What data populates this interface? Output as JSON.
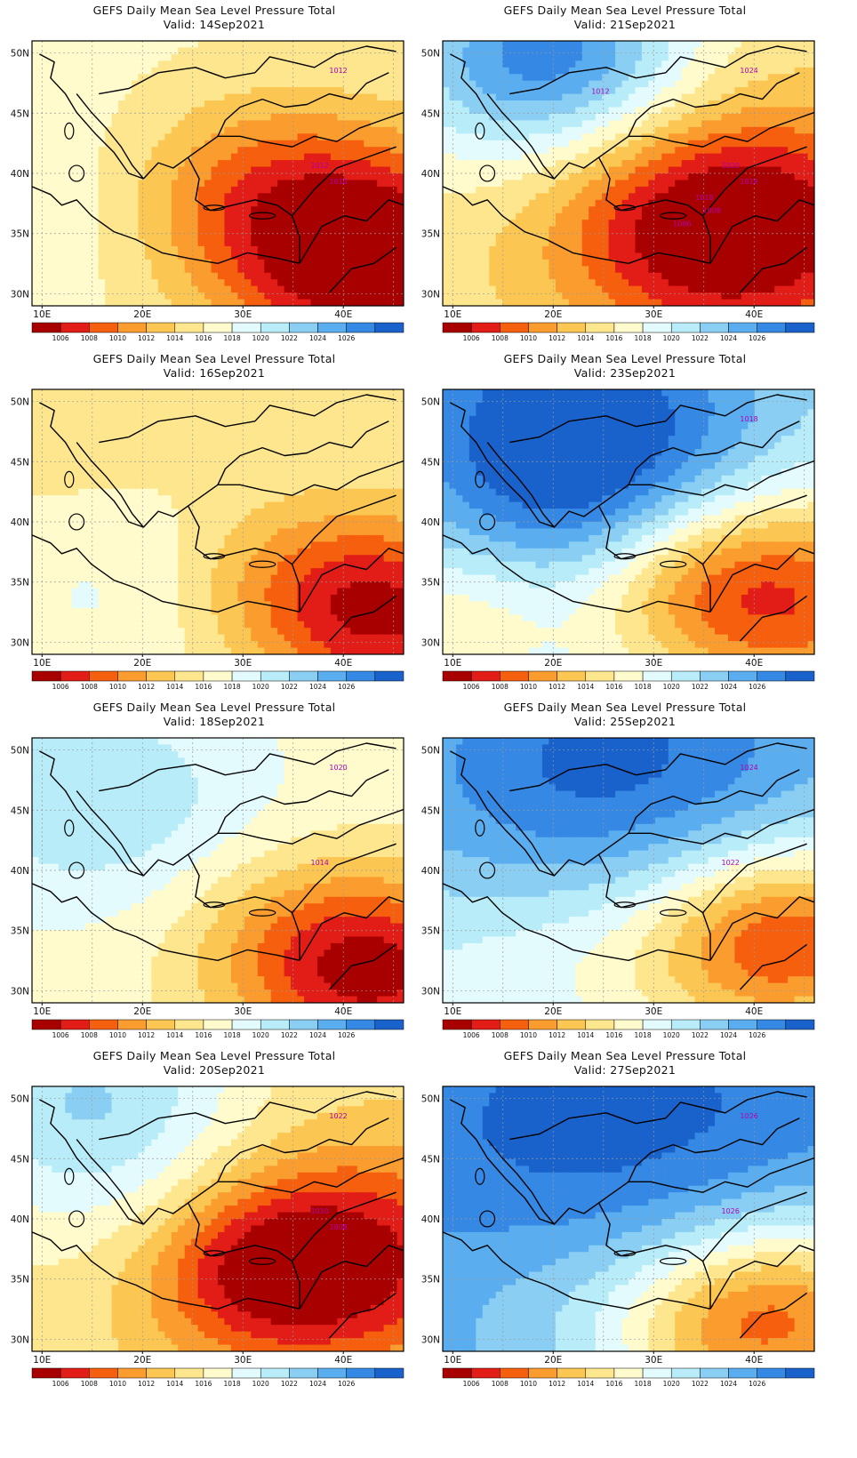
{
  "figure": {
    "title_line": "GEFS Daily Mean Sea Level Pressure Total",
    "valid_prefix": "Valid:"
  },
  "axes": {
    "lon_ticks": [
      "10E",
      "20E",
      "30E",
      "40E"
    ],
    "lat_ticks": [
      "50N",
      "45N",
      "40N",
      "35N",
      "30N"
    ],
    "lon_range": [
      9,
      46
    ],
    "lat_range": [
      29,
      51
    ]
  },
  "colorbar": {
    "labels": [
      "1006",
      "1008",
      "1010",
      "1012",
      "1014",
      "1016",
      "1018",
      "1020",
      "1022",
      "1024",
      "1026"
    ],
    "colors": [
      "#a80000",
      "#e21c16",
      "#f55f0d",
      "#fa9c2e",
      "#fcc652",
      "#fde68e",
      "#fffbcc",
      "#e4fbfd",
      "#b7ecf8",
      "#8acff3",
      "#5aaef0",
      "#3588e3",
      "#1a62cb"
    ]
  },
  "panels": [
    {
      "valid": "Valid: 14Sep2021",
      "contour_labels": [
        "1012",
        "1012",
        "1010"
      ]
    },
    {
      "valid": "Valid: 21Sep2021",
      "contour_labels": [
        "1024",
        "1020",
        "1018",
        "1012",
        "1010",
        "1008",
        "1006"
      ]
    },
    {
      "valid": "Valid: 16Sep2021",
      "contour_labels": []
    },
    {
      "valid": "Valid: 23Sep2021",
      "contour_labels": [
        "1018"
      ]
    },
    {
      "valid": "Valid: 18Sep2021",
      "contour_labels": [
        "1020",
        "1014"
      ]
    },
    {
      "valid": "Valid: 25Sep2021",
      "contour_labels": [
        "1024",
        "1022"
      ]
    },
    {
      "valid": "Valid: 20Sep2021",
      "contour_labels": [
        "1022",
        "1010",
        "1008"
      ]
    },
    {
      "valid": "Valid: 27Sep2021",
      "contour_labels": [
        "1026",
        "1026"
      ]
    }
  ]
}
